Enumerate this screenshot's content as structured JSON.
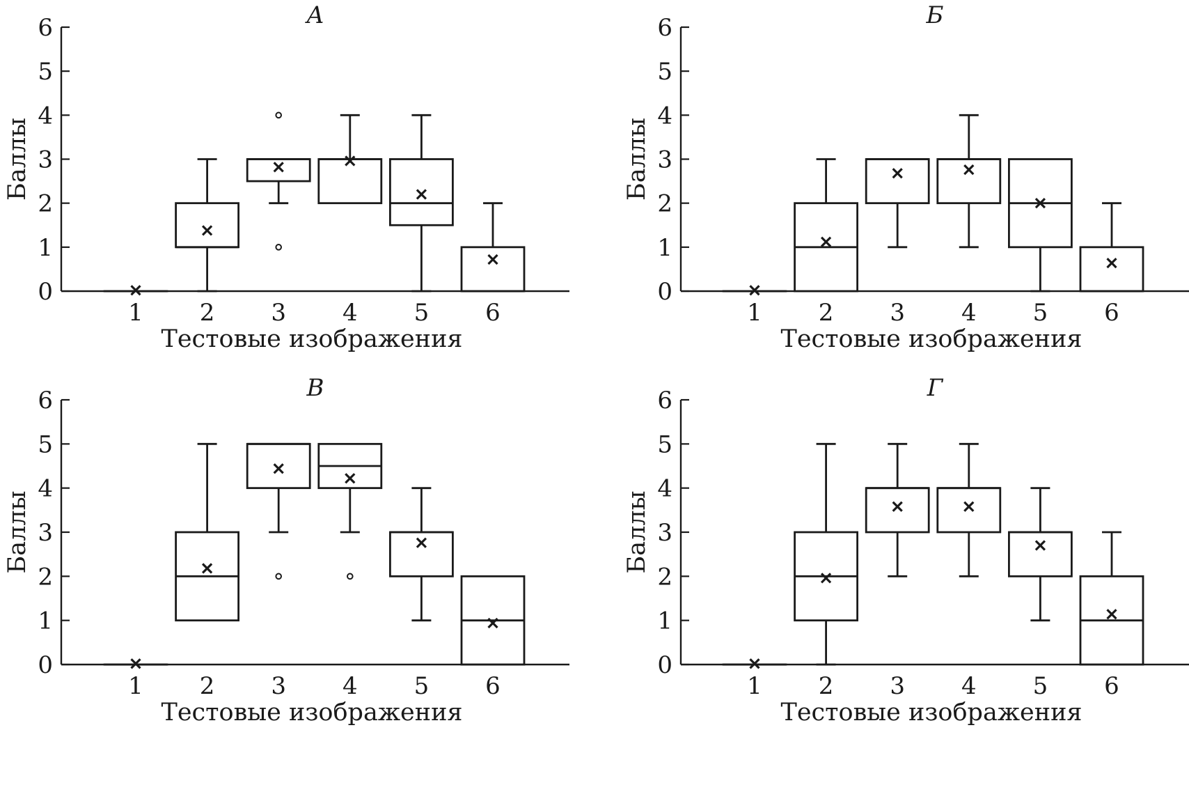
{
  "chart_data": [
    {
      "type": "boxplot",
      "title": "А",
      "xlabel": "Тестовые изображения",
      "ylabel": "Баллы",
      "ylim": [
        0,
        6
      ],
      "yticks": [
        0,
        1,
        2,
        3,
        4,
        5,
        6
      ],
      "categories": [
        "1",
        "2",
        "3",
        "4",
        "5",
        "6"
      ],
      "boxes": [
        {
          "min": 0,
          "q1": 0,
          "median": 0,
          "q3": 0,
          "max": 0,
          "mean": 0.02,
          "outliers": []
        },
        {
          "min": 0,
          "q1": 1,
          "median": 1,
          "q3": 2,
          "max": 3,
          "mean": 1.38,
          "outliers": []
        },
        {
          "min": 2,
          "q1": 2.5,
          "median": 3,
          "q3": 3,
          "max": 3,
          "mean": 2.82,
          "outliers": [
            1,
            4
          ]
        },
        {
          "min": 2,
          "q1": 2,
          "median": 3,
          "q3": 3,
          "max": 4,
          "mean": 2.96,
          "outliers": []
        },
        {
          "min": 0,
          "q1": 1.5,
          "median": 2,
          "q3": 3,
          "max": 4,
          "mean": 2.2,
          "outliers": []
        },
        {
          "min": 0,
          "q1": 0,
          "median": 0,
          "q3": 1,
          "max": 2,
          "mean": 0.72,
          "outliers": []
        }
      ]
    },
    {
      "type": "boxplot",
      "title": "Б",
      "xlabel": "Тестовые изображения",
      "ylabel": "Баллы",
      "ylim": [
        0,
        6
      ],
      "yticks": [
        0,
        1,
        2,
        3,
        4,
        5,
        6
      ],
      "categories": [
        "1",
        "2",
        "3",
        "4",
        "5",
        "6"
      ],
      "boxes": [
        {
          "min": 0,
          "q1": 0,
          "median": 0,
          "q3": 0,
          "max": 0,
          "mean": 0.02,
          "outliers": []
        },
        {
          "min": 0,
          "q1": 0,
          "median": 1,
          "q3": 2,
          "max": 3,
          "mean": 1.12,
          "outliers": []
        },
        {
          "min": 1,
          "q1": 2,
          "median": 3,
          "q3": 3,
          "max": 3,
          "mean": 2.68,
          "outliers": []
        },
        {
          "min": 1,
          "q1": 2,
          "median": 3,
          "q3": 3,
          "max": 4,
          "mean": 2.76,
          "outliers": []
        },
        {
          "min": 0,
          "q1": 1,
          "median": 2,
          "q3": 3,
          "max": 3,
          "mean": 2.0,
          "outliers": []
        },
        {
          "min": 0,
          "q1": 0,
          "median": 0,
          "q3": 1,
          "max": 2,
          "mean": 0.64,
          "outliers": []
        }
      ]
    },
    {
      "type": "boxplot",
      "title": "В",
      "xlabel": "Тестовые изображения",
      "ylabel": "Баллы",
      "ylim": [
        0,
        6
      ],
      "yticks": [
        0,
        1,
        2,
        3,
        4,
        5,
        6
      ],
      "categories": [
        "1",
        "2",
        "3",
        "4",
        "5",
        "6"
      ],
      "boxes": [
        {
          "min": 0,
          "q1": 0,
          "median": 0,
          "q3": 0,
          "max": 0,
          "mean": 0.02,
          "outliers": []
        },
        {
          "min": 1,
          "q1": 1,
          "median": 2,
          "q3": 3,
          "max": 5,
          "mean": 2.18,
          "outliers": []
        },
        {
          "min": 3,
          "q1": 4,
          "median": 5,
          "q3": 5,
          "max": 5,
          "mean": 4.44,
          "outliers": [
            2
          ]
        },
        {
          "min": 3,
          "q1": 4,
          "median": 4.5,
          "q3": 5,
          "max": 5,
          "mean": 4.22,
          "outliers": [
            2
          ]
        },
        {
          "min": 1,
          "q1": 2,
          "median": 3,
          "q3": 3,
          "max": 4,
          "mean": 2.76,
          "outliers": []
        },
        {
          "min": 0,
          "q1": 0,
          "median": 1,
          "q3": 2,
          "max": 2,
          "mean": 0.94,
          "outliers": []
        }
      ]
    },
    {
      "type": "boxplot",
      "title": "Г",
      "xlabel": "Тестовые изображения",
      "ylabel": "Баллы",
      "ylim": [
        0,
        6
      ],
      "yticks": [
        0,
        1,
        2,
        3,
        4,
        5,
        6
      ],
      "categories": [
        "1",
        "2",
        "3",
        "4",
        "5",
        "6"
      ],
      "boxes": [
        {
          "min": 0,
          "q1": 0,
          "median": 0,
          "q3": 0,
          "max": 0,
          "mean": 0.02,
          "outliers": []
        },
        {
          "min": 0,
          "q1": 1,
          "median": 2,
          "q3": 3,
          "max": 5,
          "mean": 1.96,
          "outliers": []
        },
        {
          "min": 2,
          "q1": 3,
          "median": 4,
          "q3": 4,
          "max": 5,
          "mean": 3.58,
          "outliers": []
        },
        {
          "min": 2,
          "q1": 3,
          "median": 4,
          "q3": 4,
          "max": 5,
          "mean": 3.58,
          "outliers": []
        },
        {
          "min": 1,
          "q1": 2,
          "median": 3,
          "q3": 3,
          "max": 4,
          "mean": 2.7,
          "outliers": []
        },
        {
          "min": 0,
          "q1": 0,
          "median": 1,
          "q3": 2,
          "max": 3,
          "mean": 1.14,
          "outliers": []
        }
      ]
    }
  ]
}
